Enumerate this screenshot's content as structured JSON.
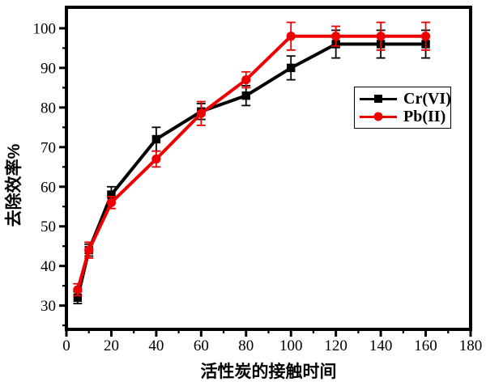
{
  "chart_data": {
    "type": "line",
    "title": "",
    "xlabel": "活性炭的接触时间",
    "ylabel": "去除效率%",
    "xlim": [
      0,
      180
    ],
    "ylim": [
      24,
      105.3
    ],
    "x_major_ticks": [
      0,
      20,
      40,
      60,
      80,
      100,
      120,
      140,
      160,
      180
    ],
    "x_minor_ticks": [
      10,
      30,
      50,
      70,
      90,
      110,
      130,
      150,
      170
    ],
    "y_major_ticks": [
      30,
      40,
      50,
      60,
      70,
      80,
      90,
      100
    ],
    "y_minor_ticks": [
      25,
      35,
      45,
      55,
      65,
      75,
      85,
      95
    ],
    "grid": false,
    "legend_position": "center-right",
    "x": [
      5,
      10,
      20,
      40,
      60,
      80,
      100,
      120,
      140,
      160
    ],
    "series": [
      {
        "name": "Cr(VI)",
        "color": "#000000",
        "marker": "square",
        "values": [
          32,
          44,
          58,
          72,
          79,
          83,
          90,
          96,
          96,
          96
        ],
        "errors": [
          1.5,
          1.5,
          2,
          3,
          2,
          2.5,
          3,
          3.5,
          3.5,
          3.5
        ]
      },
      {
        "name": "Pb(II)",
        "color": "#ee0000",
        "marker": "circle",
        "values": [
          34,
          44,
          56,
          67,
          78.5,
          87,
          98,
          98,
          98,
          98
        ],
        "errors": [
          1.5,
          2,
          1.5,
          2,
          3,
          2,
          3.5,
          2.5,
          3.5,
          3.5
        ]
      }
    ]
  },
  "legend": {
    "items": [
      {
        "label": "Cr(VI)",
        "color": "#000000",
        "marker": "square"
      },
      {
        "label": "Pb(II)",
        "color": "#ee0000",
        "marker": "circle"
      }
    ]
  },
  "colors": {
    "axis": "#000000",
    "background": "#ffffff",
    "series_cr": "#000000",
    "series_pb": "#ee0000"
  }
}
